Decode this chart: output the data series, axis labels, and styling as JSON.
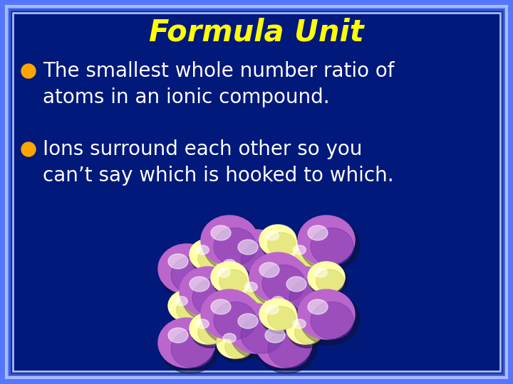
{
  "title": "Formula Unit",
  "title_color": "#FFFF00",
  "title_fontsize": 30,
  "bullet_color": "#FFA500",
  "bullet_text_color": "#FFFFFF",
  "bullet_fontsize": 20,
  "bullets": [
    "The smallest whole number ratio of\natoms in an ionic compound.",
    "Ions surround each other so you\ncan’t say which is hooked to which."
  ],
  "bg_color": "#00197a",
  "border_outer_color": "#5577ff",
  "border_mid_color": "#aabbff",
  "border_inner_color": "#3355cc",
  "purple_color": "#BB66CC",
  "purple_dark": "#7733AA",
  "yellow_color": "#FFFFAA",
  "yellow_dark": "#CCCC55"
}
